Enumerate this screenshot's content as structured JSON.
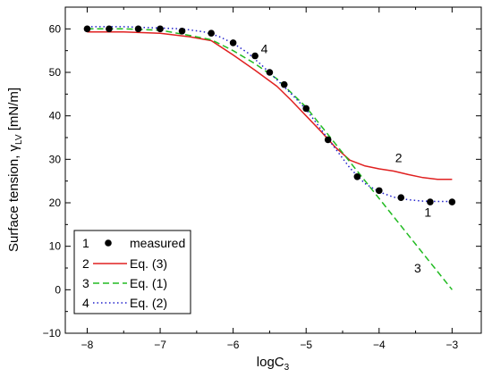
{
  "chart_data": {
    "type": "line",
    "xlabel": "logC",
    "xlabel_sub": "3",
    "ylabel": "Surface tension, γ",
    "ylabel_sub": "LV",
    "ylabel_unit": " [mN/m]",
    "xlim": [
      -8.3,
      -2.6
    ],
    "ylim": [
      -10,
      65
    ],
    "xticks": [
      -8,
      -7,
      -6,
      -5,
      -4,
      -3
    ],
    "yticks": [
      -10,
      0,
      10,
      20,
      30,
      40,
      50,
      60
    ],
    "grid": false,
    "legend_position": "bottom-left",
    "series": [
      {
        "id": "1",
        "kind": "points",
        "name": "measured",
        "color": "#000000",
        "x": [
          -8.0,
          -7.7,
          -7.3,
          -7.0,
          -6.7,
          -6.3,
          -6.0,
          -5.7,
          -5.5,
          -5.3,
          -5.0,
          -4.7,
          -4.3,
          -4.0,
          -3.7,
          -3.3,
          -3.0
        ],
        "y": [
          60.0,
          60.0,
          60.0,
          60.0,
          59.5,
          59.0,
          56.8,
          53.8,
          50.0,
          47.2,
          41.7,
          34.5,
          26.0,
          22.8,
          21.2,
          20.2,
          20.2
        ]
      },
      {
        "id": "2",
        "kind": "line",
        "style": "solid",
        "name": "Eq. (3)",
        "color": "#e02020",
        "x": [
          -8.0,
          -7.5,
          -7.0,
          -6.6,
          -6.3,
          -6.0,
          -5.7,
          -5.4,
          -5.2,
          -5.0,
          -4.8,
          -4.6,
          -4.4,
          -4.2,
          -4.0,
          -3.8,
          -3.6,
          -3.4,
          -3.2,
          -3.0
        ],
        "y": [
          59.3,
          59.3,
          59.0,
          58.2,
          57.3,
          54.0,
          50.5,
          46.8,
          43.5,
          40.0,
          36.5,
          32.8,
          29.8,
          28.5,
          27.8,
          27.3,
          26.5,
          25.8,
          25.4,
          25.4
        ]
      },
      {
        "id": "3",
        "kind": "line",
        "style": "dashed",
        "name": "Eq. (1)",
        "color": "#22bb22",
        "x": [
          -8.0,
          -7.5,
          -7.0,
          -6.6,
          -6.3,
          -6.0,
          -5.7,
          -5.4,
          -5.0,
          -4.6,
          -4.2,
          -3.8,
          -3.4,
          -3.0
        ],
        "y": [
          60.0,
          60.0,
          59.7,
          58.5,
          57.5,
          55.0,
          52.0,
          48.5,
          42.0,
          33.6,
          25.2,
          16.8,
          8.4,
          0.0
        ]
      },
      {
        "id": "4",
        "kind": "line",
        "style": "dotted",
        "name": "Eq. (2)",
        "color": "#2020cc",
        "x": [
          -8.0,
          -7.5,
          -7.0,
          -6.7,
          -6.4,
          -6.2,
          -6.0,
          -5.8,
          -5.6,
          -5.4,
          -5.2,
          -5.0,
          -4.8,
          -4.6,
          -4.4,
          -4.2,
          -4.0,
          -3.8,
          -3.6,
          -3.4,
          -3.2,
          -3.0
        ],
        "y": [
          60.5,
          60.5,
          60.2,
          60.0,
          59.3,
          58.3,
          56.7,
          54.5,
          51.5,
          48.3,
          45.0,
          41.5,
          37.0,
          32.5,
          28.0,
          24.5,
          22.5,
          21.3,
          20.7,
          20.4,
          20.3,
          20.3
        ]
      }
    ],
    "curve_labels": [
      {
        "text": "4",
        "x": -5.62,
        "y": 54.4
      },
      {
        "text": "2",
        "x": -3.78,
        "y": 29.3
      },
      {
        "text": "1",
        "x": -3.38,
        "y": 16.8
      },
      {
        "text": "3",
        "x": -3.52,
        "y": 4.0
      }
    ]
  }
}
